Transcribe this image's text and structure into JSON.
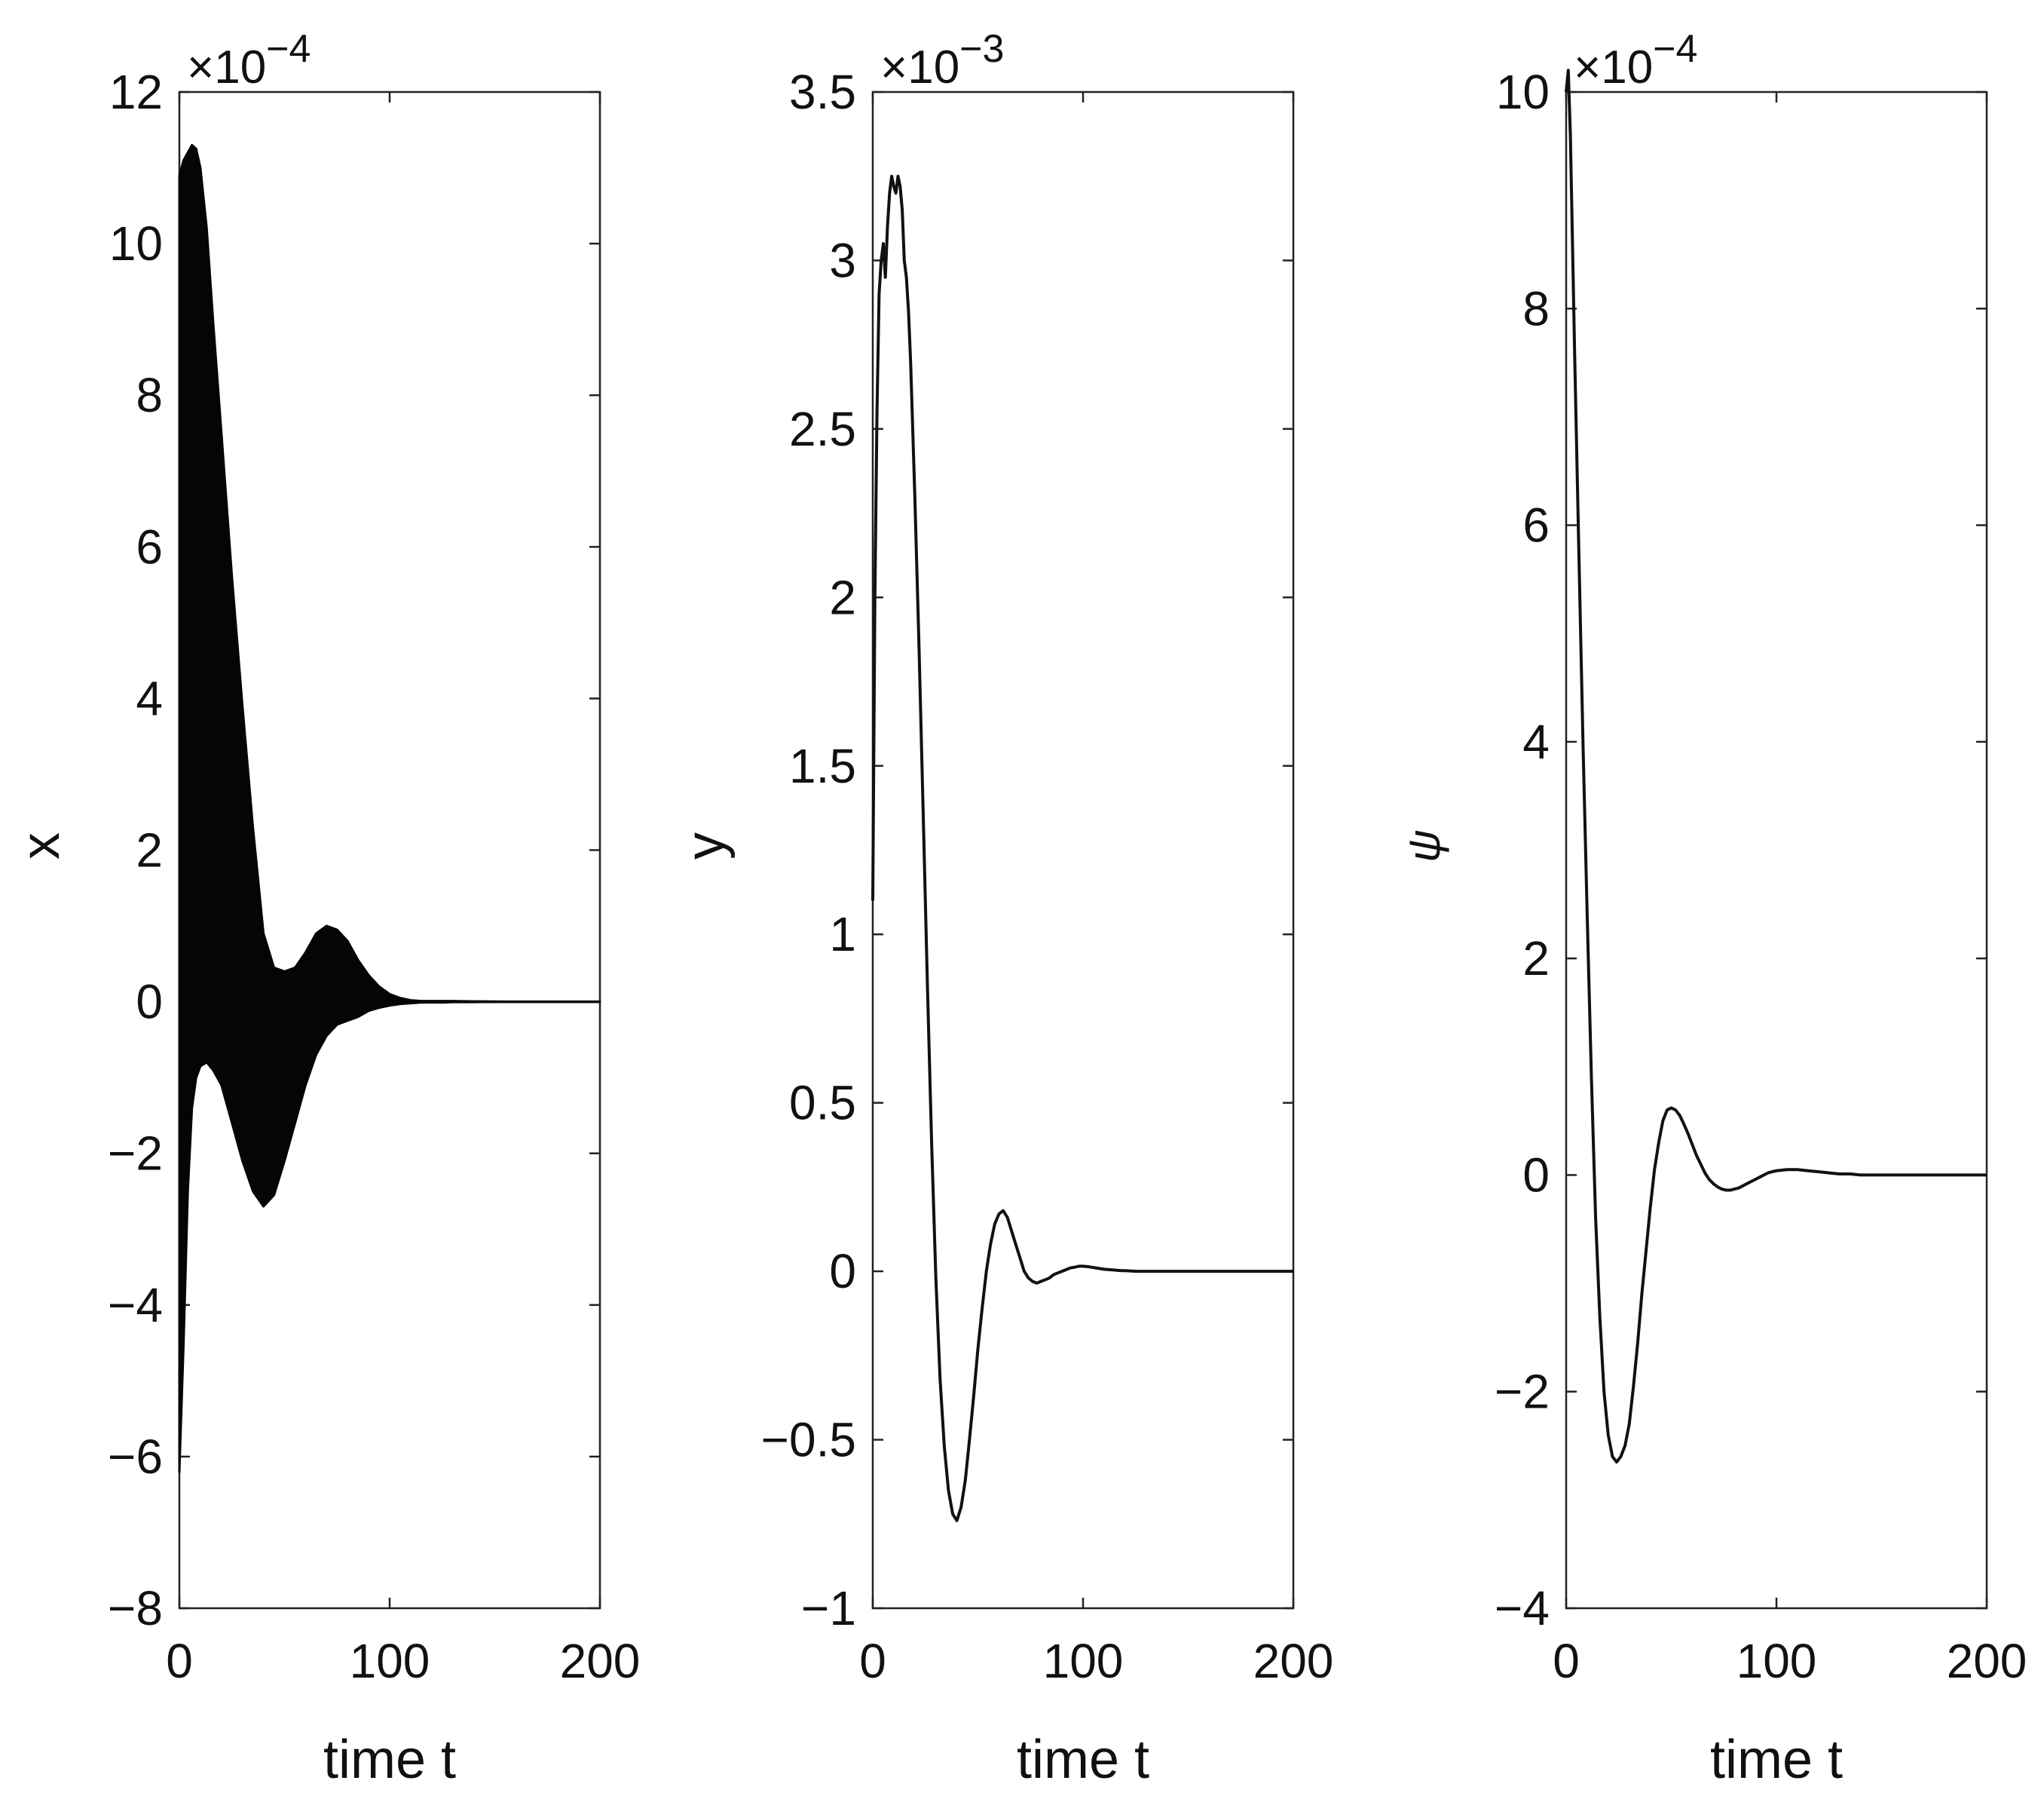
{
  "chart_data": [
    {
      "type": "line",
      "panel": "x",
      "xlabel": "time t",
      "ylabel": "x",
      "exponent_label": "×10",
      "exponent_power": "−4",
      "xlim": [
        0,
        200
      ],
      "ylim": [
        -8,
        12
      ],
      "xticks": [
        0,
        100,
        200
      ],
      "yticks": [
        -8,
        -6,
        -4,
        -2,
        0,
        2,
        4,
        6,
        8,
        10,
        12
      ],
      "x_tick_labels": [
        "0",
        "100",
        "200"
      ],
      "y_tick_labels": [
        "−8",
        "−6",
        "−4",
        "−2",
        "0",
        "2",
        "4",
        "6",
        "8",
        "10",
        "12"
      ],
      "envelope": {
        "description_type": "oscillation band",
        "t": [
          0,
          2,
          4,
          6,
          8,
          10,
          13,
          16,
          20,
          25,
          30,
          35,
          40,
          45,
          50,
          55,
          60,
          65,
          70,
          75,
          80,
          85,
          90,
          95,
          100,
          105,
          110,
          115,
          120,
          125,
          130,
          140,
          160,
          200
        ],
        "upper": [
          10.9,
          11.1,
          11.2,
          11.3,
          11.25,
          11.0,
          10.2,
          9.0,
          7.5,
          5.6,
          3.9,
          2.3,
          0.9,
          0.45,
          0.4,
          0.45,
          0.65,
          0.9,
          1.0,
          0.95,
          0.8,
          0.55,
          0.35,
          0.2,
          0.1,
          0.05,
          0.02,
          0.01,
          0.01,
          0.01,
          0.01,
          0.005,
          0.0,
          0.0
        ],
        "lower": [
          -6.2,
          -4.5,
          -2.5,
          -1.4,
          -1.0,
          -0.85,
          -0.8,
          -0.9,
          -1.1,
          -1.6,
          -2.1,
          -2.5,
          -2.7,
          -2.55,
          -2.1,
          -1.6,
          -1.1,
          -0.7,
          -0.45,
          -0.3,
          -0.25,
          -0.2,
          -0.12,
          -0.08,
          -0.05,
          -0.03,
          -0.02,
          -0.01,
          -0.01,
          -0.01,
          -0.005,
          -0.005,
          0.0,
          0.0
        ]
      }
    },
    {
      "type": "line",
      "panel": "y",
      "xlabel": "time t",
      "ylabel": "y",
      "exponent_label": "×10",
      "exponent_power": "−3",
      "xlim": [
        0,
        200
      ],
      "ylim": [
        -1,
        3.5
      ],
      "xticks": [
        0,
        100,
        200
      ],
      "yticks": [
        -1,
        -0.5,
        0,
        0.5,
        1,
        1.5,
        2,
        2.5,
        3,
        3.5
      ],
      "x_tick_labels": [
        "0",
        "100",
        "200"
      ],
      "y_tick_labels": [
        "−1",
        "−0.5",
        "0",
        "0.5",
        "1",
        "1.5",
        "2",
        "2.5",
        "3",
        "3.5"
      ],
      "x": [
        0,
        1,
        2,
        3,
        4,
        5,
        6,
        7,
        8,
        9,
        10,
        11,
        12,
        13,
        14,
        15,
        16,
        17,
        18,
        19,
        20,
        22,
        24,
        26,
        28,
        30,
        32,
        34,
        36,
        38,
        40,
        42,
        44,
        46,
        48,
        50,
        52,
        54,
        56,
        58,
        60,
        62,
        64,
        66,
        68,
        70,
        72,
        74,
        76,
        78,
        80,
        82,
        84,
        86,
        88,
        90,
        92,
        94,
        96,
        98,
        100,
        102,
        104,
        106,
        108,
        110,
        112,
        114,
        116,
        118,
        120,
        125,
        130,
        135,
        140,
        145,
        150,
        160,
        170,
        180,
        190,
        200
      ],
      "y": [
        1.1,
        2.0,
        2.55,
        2.9,
        3.0,
        3.05,
        2.95,
        3.1,
        3.2,
        3.25,
        3.22,
        3.2,
        3.25,
        3.22,
        3.15,
        3.0,
        2.95,
        2.85,
        2.7,
        2.5,
        2.3,
        1.85,
        1.35,
        0.85,
        0.38,
        -0.02,
        -0.32,
        -0.52,
        -0.65,
        -0.72,
        -0.74,
        -0.7,
        -0.62,
        -0.5,
        -0.37,
        -0.23,
        -0.11,
        0.0,
        0.08,
        0.14,
        0.17,
        0.18,
        0.16,
        0.12,
        0.08,
        0.04,
        0.0,
        -0.02,
        -0.03,
        -0.035,
        -0.03,
        -0.025,
        -0.02,
        -0.01,
        -0.005,
        0.0,
        0.005,
        0.01,
        0.012,
        0.015,
        0.015,
        0.014,
        0.012,
        0.01,
        0.008,
        0.006,
        0.005,
        0.004,
        0.003,
        0.002,
        0.002,
        0.0,
        0.0,
        0.0,
        0.0,
        0.0,
        0.0,
        0.0,
        0.0,
        0.0,
        0.0,
        0.0
      ]
    },
    {
      "type": "line",
      "panel": "psi",
      "xlabel": "time t",
      "ylabel": "ψ",
      "exponent_label": "×10",
      "exponent_power": "−4",
      "xlim": [
        0,
        200
      ],
      "ylim": [
        -4,
        10
      ],
      "xticks": [
        0,
        100,
        200
      ],
      "yticks": [
        -4,
        -2,
        0,
        2,
        4,
        6,
        8,
        10
      ],
      "x_tick_labels": [
        "0",
        "100",
        "200"
      ],
      "y_tick_labels": [
        "−4",
        "−2",
        "0",
        "2",
        "4",
        "6",
        "8",
        "10"
      ],
      "x": [
        0,
        1,
        2,
        3,
        4,
        6,
        8,
        10,
        12,
        14,
        16,
        18,
        20,
        22,
        24,
        26,
        28,
        30,
        32,
        34,
        36,
        38,
        40,
        42,
        44,
        46,
        48,
        50,
        52,
        54,
        56,
        58,
        60,
        62,
        64,
        66,
        68,
        70,
        72,
        74,
        76,
        78,
        80,
        82,
        84,
        86,
        88,
        90,
        92,
        94,
        96,
        98,
        100,
        105,
        110,
        115,
        120,
        125,
        130,
        135,
        140,
        150,
        160,
        170,
        180,
        190,
        200
      ],
      "y": [
        10.0,
        10.2,
        9.6,
        8.6,
        7.6,
        5.8,
        4.0,
        2.4,
        0.9,
        -0.4,
        -1.3,
        -2.0,
        -2.4,
        -2.6,
        -2.65,
        -2.6,
        -2.5,
        -2.3,
        -1.95,
        -1.55,
        -1.1,
        -0.7,
        -0.3,
        0.05,
        0.3,
        0.5,
        0.6,
        0.62,
        0.6,
        0.55,
        0.47,
        0.38,
        0.28,
        0.18,
        0.1,
        0.02,
        -0.04,
        -0.08,
        -0.11,
        -0.13,
        -0.14,
        -0.14,
        -0.13,
        -0.12,
        -0.1,
        -0.08,
        -0.06,
        -0.04,
        -0.02,
        0.0,
        0.02,
        0.03,
        0.04,
        0.05,
        0.05,
        0.04,
        0.03,
        0.02,
        0.01,
        0.01,
        0.0,
        0.0,
        0.0,
        0.0,
        0.0,
        0.0,
        0.0
      ]
    }
  ]
}
